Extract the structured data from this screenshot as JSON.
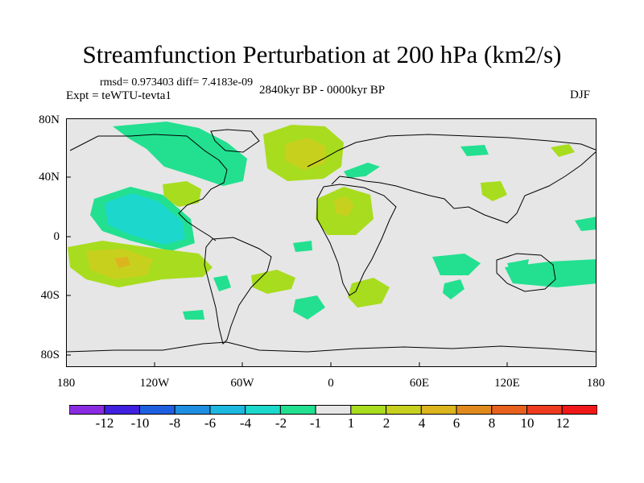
{
  "title": "Streamfunction Perturbation at 200 hPa (km2/s)",
  "stats": "rmsd= 0.973403 diff= 7.4183e-09",
  "experiment": "Expt = teWTU-tevta1",
  "period": "2840kyr BP - 0000kyr BP",
  "season": "DJF",
  "map": {
    "background_color": "#e6e6e6",
    "lat_labels": [
      "80N",
      "40N",
      "0",
      "40S",
      "80S"
    ],
    "lon_labels": [
      "180",
      "120W",
      "60W",
      "0",
      "60E",
      "120E",
      "180"
    ]
  },
  "colorbar": {
    "labels": [
      "-12",
      "-10",
      "-8",
      "-6",
      "-4",
      "-2",
      "-1",
      "1",
      "2",
      "4",
      "6",
      "8",
      "10",
      "12"
    ],
    "colors": [
      "#8a2be2",
      "#4020e0",
      "#1e5fe0",
      "#1e8fe0",
      "#1cb8e0",
      "#1cd8cc",
      "#22e090",
      "#e6e6e6",
      "#a8dc1e",
      "#c8d01e",
      "#dcb41e",
      "#e08a1e",
      "#e8601e",
      "#ee3a1e",
      "#f01818"
    ]
  }
}
